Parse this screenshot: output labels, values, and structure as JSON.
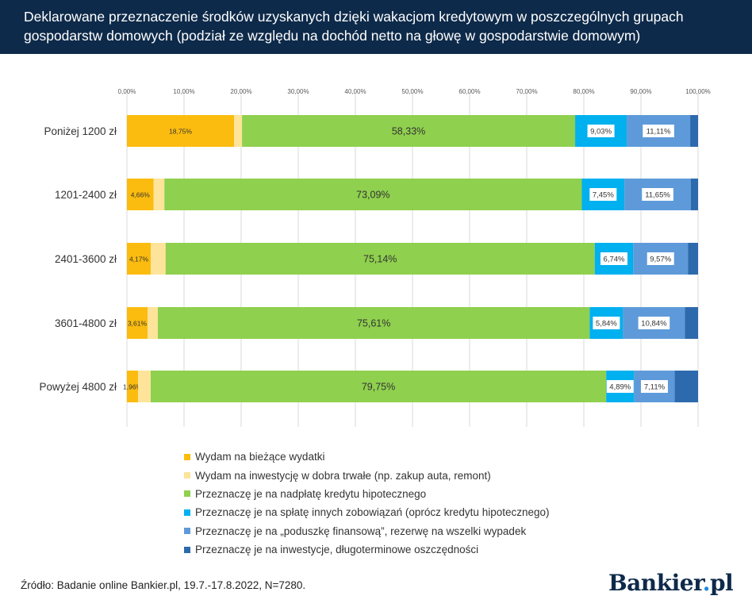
{
  "title_lines": [
    "Deklarowane przeznaczenie środków uzyskanych dzięki wakacjom kredytowym w poszczególnych grupach",
    "gospodarstw domowych (podział ze względu na dochód netto na głowę w gospodarstwie domowym)"
  ],
  "source": "Źródło: Badanie online Bankier.pl, 19.7.-17.8.2022, N=7280.",
  "logo": {
    "text": "Bankier",
    "dot": ".",
    "suffix": "pl"
  },
  "chart_data": {
    "type": "bar",
    "orientation": "horizontal",
    "stacked": true,
    "title": "Deklarowane przeznaczenie środków uzyskanych dzięki wakacjom kredytowym w poszczególnych grupach gospodarstw domowych (podział ze względu na dochód netto na głowę w gospodarstwie domowym)",
    "xlabel": "",
    "ylabel": "",
    "xlim": [
      0,
      100
    ],
    "x_ticks": [
      "0,00%",
      "10,00%",
      "20,00%",
      "30,00%",
      "40,00%",
      "50,00%",
      "60,00%",
      "70,00%",
      "80,00%",
      "90,00%",
      "100,00%"
    ],
    "categories": [
      "Poniżej 1200 zł",
      "1201-2400 zł",
      "2401-3600 zł",
      "3601-4800 zł",
      "Powyżej 4800 zł"
    ],
    "series": [
      {
        "name": "Wydam na bieżące wydatki",
        "color": "#fbbc0f",
        "values": [
          18.75,
          4.66,
          4.17,
          3.61,
          1.96
        ],
        "labels": [
          "18,75%",
          "4,66%",
          "4,17%",
          "3,61%",
          "1,96%"
        ]
      },
      {
        "name": "Wydam na inwestycję w dobra trwałe (np. zakup auta, remont)",
        "color": "#fde49a",
        "values": [
          1.4,
          1.9,
          2.6,
          1.8,
          2.2
        ],
        "labels": [
          "",
          "",
          "",
          "",
          ""
        ]
      },
      {
        "name": "Przeznaczę je na nadpłatę kredytu hipotecznego",
        "color": "#8fd04e",
        "values": [
          58.33,
          73.09,
          75.14,
          75.61,
          79.75
        ],
        "labels": [
          "58,33%",
          "73,09%",
          "75,14%",
          "75,61%",
          "79,75%"
        ]
      },
      {
        "name": "Przeznaczę je na spłatę innych zobowiązań (oprócz kredytu hipotecznego)",
        "color": "#00b0ef",
        "values": [
          9.03,
          7.45,
          6.74,
          5.84,
          4.89
        ],
        "labels": [
          "9,03%",
          "7,45%",
          "6,74%",
          "5,84%",
          "4,89%"
        ]
      },
      {
        "name": "Przeznaczę je na „poduszkę finansową”, rezerwę na wszelki wypadek",
        "color": "#5e9ad9",
        "values": [
          11.11,
          11.65,
          9.57,
          10.84,
          7.11
        ],
        "labels": [
          "11,11%",
          "11,65%",
          "9,57%",
          "10,84%",
          "7,11%"
        ]
      },
      {
        "name": "Przeznaczę je na inwestycje, długoterminowe oszczędności",
        "color": "#2d6aad",
        "values": [
          1.38,
          1.25,
          1.78,
          2.3,
          4.09
        ],
        "labels": [
          "",
          "",
          "",
          "",
          ""
        ]
      }
    ],
    "grid": true,
    "legend_position": "bottom"
  }
}
